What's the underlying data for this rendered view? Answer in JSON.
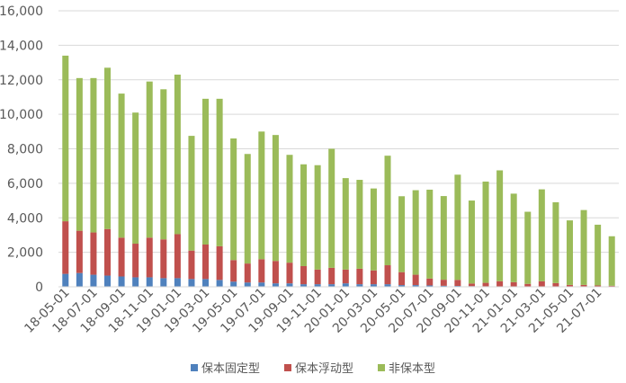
{
  "chart_data": {
    "type": "bar",
    "stacked": true,
    "title": "",
    "xlabel": "",
    "ylabel": "",
    "ylim": [
      0,
      16000
    ],
    "yticks": [
      0,
      2000,
      4000,
      6000,
      8000,
      10000,
      12000,
      14000,
      16000
    ],
    "ytick_labels": [
      "0",
      "2,000",
      "4,000",
      "6,000",
      "8,000",
      "10,000",
      "12,000",
      "14,000",
      "16,000"
    ],
    "grid": true,
    "legend_position": "bottom",
    "categories": [
      "18-05",
      "18-06",
      "18-07",
      "18-08",
      "18-09",
      "18-10",
      "18-11",
      "18-12",
      "19-01",
      "19-02",
      "19-03",
      "19-04",
      "19-05",
      "19-06",
      "19-07",
      "19-08",
      "19-09",
      "19-10",
      "19-11",
      "19-12",
      "20-01",
      "20-02",
      "20-03",
      "20-04",
      "20-05",
      "20-06",
      "20-07",
      "20-08",
      "20-09",
      "20-10",
      "20-11",
      "20-12",
      "21-01",
      "21-02",
      "21-03",
      "21-04",
      "21-05",
      "21-06",
      "21-07",
      "21-08"
    ],
    "xtick_labels": [
      {
        "index": 0,
        "label": "18-05-01"
      },
      {
        "index": 2,
        "label": "18-07-01"
      },
      {
        "index": 4,
        "label": "18-09-01"
      },
      {
        "index": 6,
        "label": "18-11-01"
      },
      {
        "index": 8,
        "label": "19-01-01"
      },
      {
        "index": 10,
        "label": "19-03-01"
      },
      {
        "index": 12,
        "label": "19-05-01"
      },
      {
        "index": 14,
        "label": "19-07-01"
      },
      {
        "index": 16,
        "label": "19-09-01"
      },
      {
        "index": 18,
        "label": "19-11-01"
      },
      {
        "index": 20,
        "label": "20-01-01"
      },
      {
        "index": 22,
        "label": "20-03-01"
      },
      {
        "index": 24,
        "label": "20-05-01"
      },
      {
        "index": 26,
        "label": "20-07-01"
      },
      {
        "index": 28,
        "label": "20-09-01"
      },
      {
        "index": 30,
        "label": "20-11-01"
      },
      {
        "index": 32,
        "label": "21-01-01"
      },
      {
        "index": 34,
        "label": "21-03-01"
      },
      {
        "index": 36,
        "label": "21-05-01"
      },
      {
        "index": 38,
        "label": "21-07-01"
      }
    ],
    "series": [
      {
        "name": "保本固定型",
        "color": "#4f81bd",
        "values": [
          750,
          800,
          700,
          650,
          600,
          550,
          550,
          500,
          500,
          450,
          450,
          400,
          300,
          250,
          250,
          200,
          200,
          150,
          150,
          150,
          200,
          150,
          150,
          150,
          100,
          100,
          80,
          60,
          50,
          40,
          30,
          25,
          20,
          20,
          20,
          15,
          10,
          10,
          10,
          10
        ]
      },
      {
        "name": "保本浮动型",
        "color": "#c0504d",
        "values": [
          3050,
          2450,
          2450,
          2700,
          2250,
          1950,
          2300,
          2250,
          2550,
          1650,
          2000,
          1950,
          1250,
          1100,
          1350,
          1300,
          1200,
          1050,
          850,
          950,
          800,
          900,
          800,
          1100,
          750,
          600,
          400,
          350,
          350,
          150,
          200,
          300,
          250,
          150,
          300,
          200,
          100,
          100,
          70,
          50
        ]
      },
      {
        "name": "非保本型",
        "color": "#9bbb59",
        "values": [
          9600,
          8850,
          8950,
          9350,
          8350,
          7600,
          9050,
          8700,
          9250,
          6650,
          8450,
          8550,
          7050,
          6350,
          7400,
          7300,
          6250,
          5900,
          6050,
          6900,
          5300,
          5150,
          4750,
          6350,
          4400,
          4900,
          5150,
          4850,
          6100,
          4810,
          5870,
          6425,
          5130,
          4180,
          5330,
          4685,
          3740,
          4340,
          3520,
          2870
        ]
      }
    ]
  }
}
